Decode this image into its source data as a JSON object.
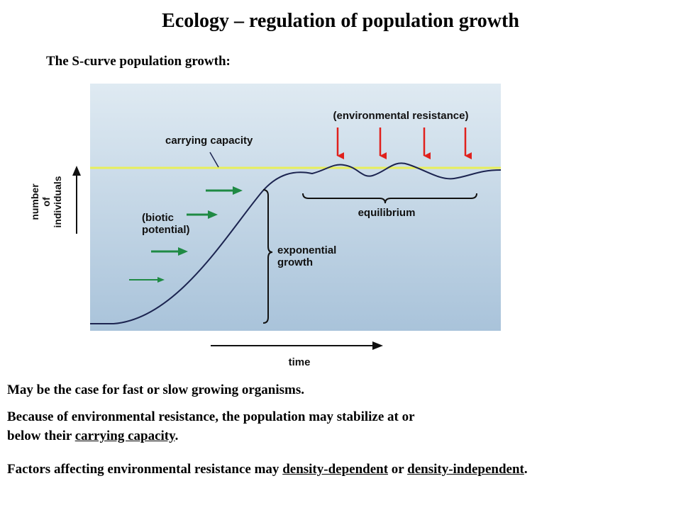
{
  "title": "Ecology – regulation of population growth",
  "subtitle": "The S-curve population growth:",
  "diagram": {
    "environmental_resistance": "(environmental resistance)",
    "carrying_capacity": "carrying capacity",
    "biotic_potential_line1": "(biotic",
    "biotic_potential_line2": "potential)",
    "exponential_growth_line1": "exponential",
    "exponential_growth_line2": "growth",
    "equilibrium": "equilibrium",
    "y_axis_line1": "number",
    "y_axis_line2": "of",
    "y_axis_line3": "individuals",
    "x_axis": "time",
    "colors": {
      "background_top": "#dfeaf2",
      "background_bottom": "#a9c3da",
      "curve": "#1c2450",
      "carrying_capacity_line": "#e8ef5a",
      "resistance_arrows": "#e0201c",
      "biotic_arrows": "#1f8a44"
    }
  },
  "paragraphs": {
    "p1": "May be the case for fast or slow growing organisms.",
    "p2_line1": "Because of environmental resistance, the population may stabilize at or",
    "p2_line2_pre": "below their ",
    "p2_line2_link": "carrying capacity",
    "p2_line2_post": ".",
    "p3_pre": "Factors affecting environmental resistance may ",
    "p3_term1": "density-dependent",
    "p3_mid": " or ",
    "p3_term2": "density-independent",
    "p3_post": "."
  }
}
